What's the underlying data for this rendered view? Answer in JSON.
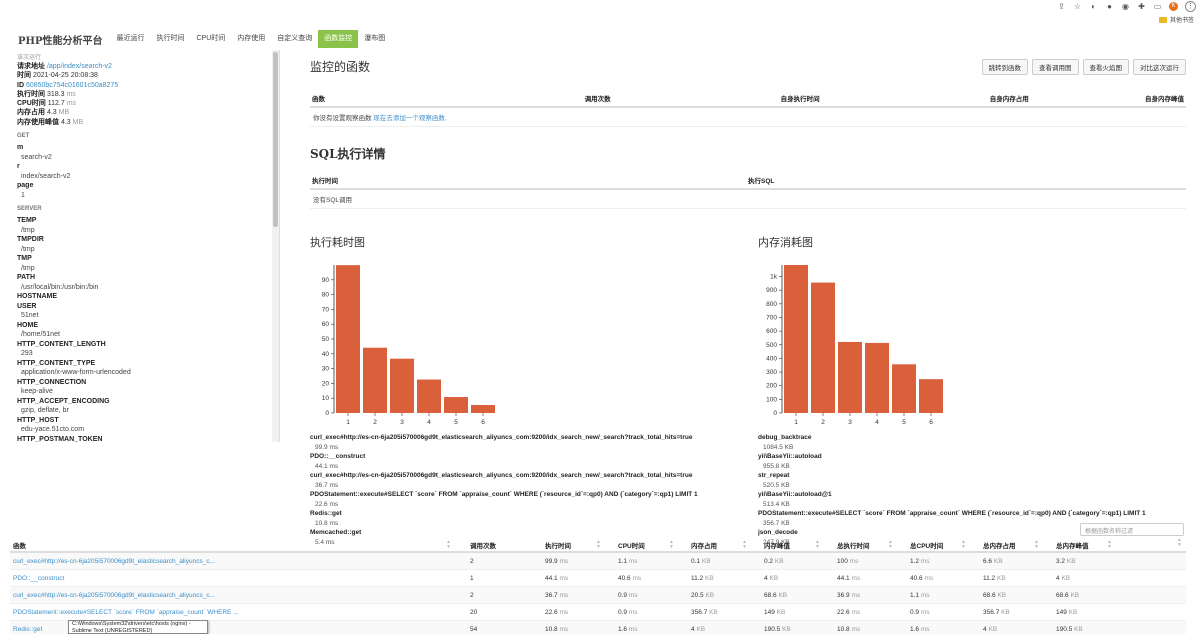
{
  "browser": {
    "bookmarks_label": "其他书签",
    "avatar_letter": "K"
  },
  "nav": {
    "brand": "PHP性能分析平台",
    "tabs": [
      "最近运行",
      "执行时间",
      "CPU时间",
      "内存使用",
      "自定义查询",
      "函数监控",
      "瀑布图"
    ],
    "active_index": 5
  },
  "sidebar": {
    "section_title": "该次运行",
    "meta": [
      {
        "label": "请求地址",
        "value": "/app/index/search-v2",
        "unit": "",
        "link": true
      },
      {
        "label": "时间",
        "value": "2021-04-25 20:08:38",
        "unit": "",
        "link": false
      },
      {
        "label": "ID",
        "value": "60850bc754c01601c50a8275",
        "unit": "",
        "link": true
      },
      {
        "label": "执行时间",
        "value": "318.3",
        "unit": "ms",
        "link": false
      },
      {
        "label": "CPU时间",
        "value": "112.7",
        "unit": "ms",
        "link": false
      },
      {
        "label": "内存占用",
        "value": "4.3",
        "unit": "MB",
        "link": false
      },
      {
        "label": "内存使用峰值",
        "value": "4.3",
        "unit": "MB",
        "link": false
      }
    ],
    "get_title": "GET",
    "get_params": [
      {
        "k": "m",
        "v": "search-v2"
      },
      {
        "k": "r",
        "v": "index/search-v2"
      },
      {
        "k": "page",
        "v": "1"
      }
    ],
    "server_title": "SERVER",
    "server_params": [
      {
        "k": "TEMP",
        "v": "/tmp"
      },
      {
        "k": "TMPDIR",
        "v": "/tmp"
      },
      {
        "k": "TMP",
        "v": "/tmp"
      },
      {
        "k": "PATH",
        "v": "/usr/local/bin:/usr/bin:/bin"
      },
      {
        "k": "HOSTNAME",
        "v": ""
      },
      {
        "k": "USER",
        "v": "51net"
      },
      {
        "k": "HOME",
        "v": "/home/51net"
      },
      {
        "k": "HTTP_CONTENT_LENGTH",
        "v": "293"
      },
      {
        "k": "HTTP_CONTENT_TYPE",
        "v": "application/x-www-form-urlencoded"
      },
      {
        "k": "HTTP_CONNECTION",
        "v": "keep-alive"
      },
      {
        "k": "HTTP_ACCEPT_ENCODING",
        "v": "gzip, deflate, br"
      },
      {
        "k": "HTTP_HOST",
        "v": "edu-yace.51cto.com"
      },
      {
        "k": "HTTP_POSTMAN_TOKEN",
        "v": ""
      }
    ]
  },
  "watch": {
    "title": "监控的函数",
    "buttons": [
      "跳转到函数",
      "查看调用图",
      "查看火焰图",
      "对比这次运行"
    ],
    "columns": [
      "函数",
      "调用次数",
      "自身执行时间",
      "自身内存占用",
      "自身内存峰值"
    ],
    "empty_prefix": "你没有设置观察函数 ",
    "empty_link": "现在去添加一个观察函数."
  },
  "sql": {
    "title": "SQL执行详情",
    "columns": [
      "执行时间",
      "执行SQL"
    ],
    "empty": "没有SQL调用"
  },
  "time_chart": {
    "title": "执行耗时图",
    "legend": [
      {
        "name": "curl_exec#http://es-cn-6ja205i570006gd9t_elasticsearch_aliyuncs_com:9200/idx_search_new/_search?track_total_hits=true",
        "value": "99.9 ms"
      },
      {
        "name": "PDO::__construct",
        "value": "44.1 ms"
      },
      {
        "name": "curl_exec#http://es-cn-6ja205i570006gd9t_elasticsearch_aliyuncs_com:9200/idx_search_new/_search?track_total_hits=true",
        "value": "36.7 ms"
      },
      {
        "name": "PDOStatement::execute#SELECT `score` FROM `appraise_count` WHERE (`resource_id`=:qp0) AND (`category`=:qp1) LIMIT 1",
        "value": "22.6 ms"
      },
      {
        "name": "Redis::get",
        "value": "10.8 ms"
      },
      {
        "name": "Memcached::get",
        "value": "5.4 ms"
      }
    ]
  },
  "mem_chart": {
    "title": "内存消耗图",
    "legend": [
      {
        "name": "debug_backtrace",
        "value": "1084.5 KB"
      },
      {
        "name": "yii\\BaseYii::autoload",
        "value": "955.8 KB"
      },
      {
        "name": "str_repeat",
        "value": "520.5 KB"
      },
      {
        "name": "yii\\BaseYii::autoload@1",
        "value": "513.4 KB"
      },
      {
        "name": "PDOStatement::execute#SELECT `score` FROM `appraise_count` WHERE (`resource_id`=:qp0) AND (`category`=:qp1) LIMIT 1",
        "value": "356.7 KB"
      },
      {
        "name": "json_decode",
        "value": "247.9 KB"
      }
    ]
  },
  "chart_data": [
    {
      "type": "bar",
      "title": "执行耗时图",
      "categories": [
        "1",
        "2",
        "3",
        "4",
        "5",
        "6"
      ],
      "values": [
        99.9,
        44.1,
        36.7,
        22.6,
        10.8,
        5.4
      ],
      "ylim": [
        0,
        100
      ],
      "yticks": [
        0,
        10,
        20,
        30,
        40,
        50,
        60,
        70,
        80,
        90
      ],
      "ytick_labels": [
        "0",
        "10",
        "20",
        "30",
        "40",
        "50",
        "60",
        "70",
        "80",
        "90"
      ],
      "color": "#d9603b"
    },
    {
      "type": "bar",
      "title": "内存消耗图",
      "categories": [
        "1",
        "2",
        "3",
        "4",
        "5",
        "6"
      ],
      "values": [
        1084.5,
        955.8,
        520.5,
        513.4,
        356.7,
        247.9
      ],
      "ylim": [
        0,
        1084.5
      ],
      "yticks": [
        0,
        100,
        200,
        300,
        400,
        500,
        600,
        700,
        800,
        900,
        1000
      ],
      "ytick_labels": [
        "0",
        "100",
        "200",
        "300",
        "400",
        "500",
        "600",
        "700",
        "800",
        "900",
        "1k"
      ],
      "color": "#d9603b"
    }
  ],
  "func_table": {
    "filter_placeholder": "根据函数名称过滤",
    "columns": [
      "函数",
      "调用次数",
      "执行时间",
      "CPU时间",
      "内存占用",
      "内存峰值",
      "总执行时间",
      "总CPU时间",
      "总内存占用",
      "总内存峰值"
    ],
    "rows": [
      [
        "curl_exec#http://es-cn-6ja205i570006gd9t_elasticsearch_aliyuncs_c...",
        "2",
        "99.9",
        "1.1",
        "0.1",
        "0.2",
        "100",
        "1.2",
        "6.6",
        "3.2"
      ],
      [
        "PDO::__construct",
        "1",
        "44.1",
        "40.6",
        "11.2",
        "4",
        "44.1",
        "40.6",
        "11.2",
        "4"
      ],
      [
        "curl_exec#http://es-cn-6ja205i570006gd9t_elasticsearch_aliyuncs_c...",
        "2",
        "36.7",
        "0.9",
        "20.5",
        "68.6",
        "36.9",
        "1.1",
        "68.6",
        "68.6"
      ],
      [
        "PDOStatement::execute#SELECT `score` FROM `appraise_count` WHERE ...",
        "20",
        "22.6",
        "0.9",
        "356.7",
        "149",
        "22.6",
        "0.9",
        "356.7",
        "149"
      ],
      [
        "Redis::get",
        "54",
        "10.8",
        "1.6",
        "4",
        "190.5",
        "10.8",
        "1.6",
        "4",
        "190.5"
      ]
    ],
    "units": [
      "",
      "",
      "ms",
      "ms",
      "KB",
      "KB",
      "ms",
      "ms",
      "KB",
      "KB"
    ]
  },
  "tooltip": {
    "line1": "C:\\Windows\\System32\\drivers\\etc\\hosts (nginx) -",
    "line2": "Sublime Text (UNREGISTERED)"
  }
}
